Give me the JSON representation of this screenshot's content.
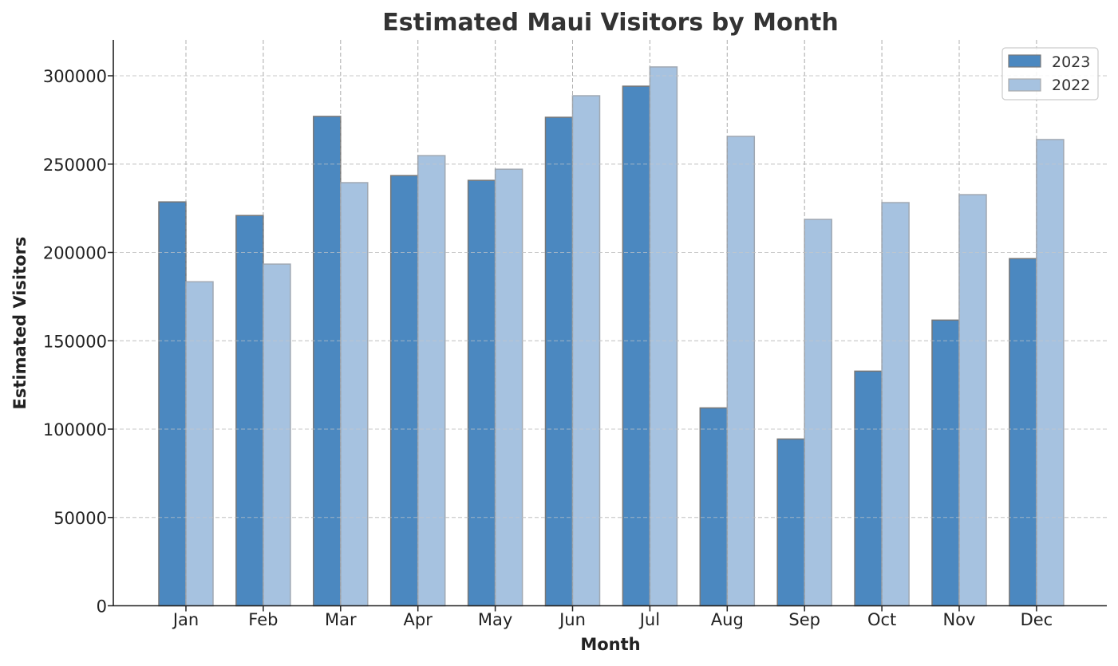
{
  "chart_data": {
    "type": "bar",
    "title": "Estimated Maui Visitors by Month",
    "xlabel": "Month",
    "ylabel": "Estimated Visitors",
    "categories": [
      "Jan",
      "Feb",
      "Mar",
      "Apr",
      "May",
      "Jun",
      "Jul",
      "Aug",
      "Sep",
      "Oct",
      "Nov",
      "Dec"
    ],
    "series": [
      {
        "name": "2023",
        "color": "#4b88c0",
        "values": [
          228600,
          220900,
          277000,
          243500,
          240800,
          276500,
          294100,
          112000,
          94400,
          132800,
          161700,
          196500
        ]
      },
      {
        "name": "2022",
        "color": "#a6c2e0",
        "values": [
          183400,
          193400,
          239500,
          254800,
          247100,
          288700,
          305000,
          265700,
          218700,
          228200,
          232700,
          263900
        ]
      }
    ],
    "ylim": [
      0,
      320000
    ],
    "yticks": [
      0,
      50000,
      100000,
      150000,
      200000,
      250000,
      300000
    ],
    "ytick_labels": [
      "0",
      "50000",
      "100000",
      "150000",
      "200000",
      "250000",
      "300000"
    ],
    "grid": true,
    "grid_style": "dashed",
    "legend_position": "upper right"
  }
}
